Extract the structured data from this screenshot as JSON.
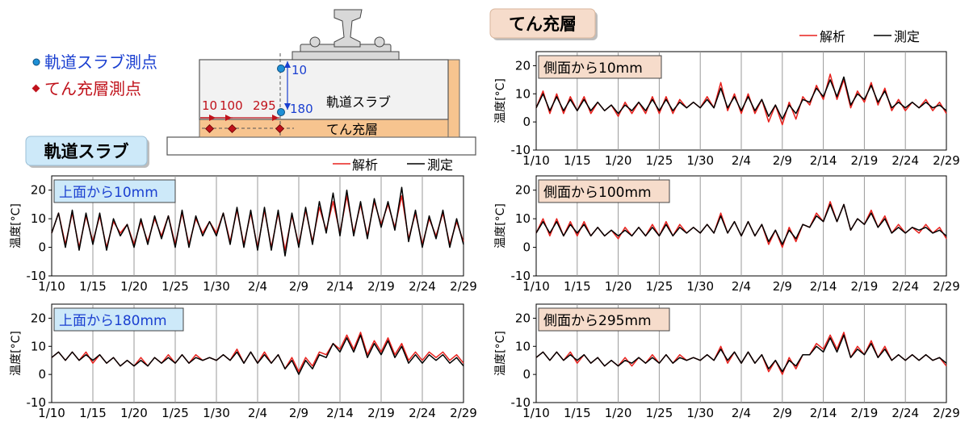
{
  "section_labels": {
    "slab": "軌道スラブ",
    "filler": "てん充層"
  },
  "diagram": {
    "legend_slab_point": "軌道スラブ測点",
    "legend_filler_point": "てん充層測点",
    "slab_label": "軌道スラブ",
    "filler_label": "てん充層",
    "dim_10_top": "10",
    "dim_180": "180",
    "dim_10": "10",
    "dim_100": "100",
    "dim_295": "295"
  },
  "legends": {
    "analysis": "解析",
    "measured": "測定"
  },
  "colors": {
    "analysis": "#e8211d",
    "measured": "#000000",
    "slab_box_fill": "#cde9f9",
    "filler_box_fill": "#f6dccb",
    "slab_point": "#1e8fd5",
    "filler_point": "#c0121b",
    "legend_slab_text": "#1a3fd0",
    "legend_filler_text": "#c0121b"
  },
  "chart_data": [
    {
      "id": "slab10",
      "panel_label": "上面から10mm",
      "group": "slab",
      "type": "line",
      "ylabel": "温度[°C]",
      "ylim": [
        -10,
        25
      ],
      "yticks": [
        -10,
        0,
        10,
        20
      ],
      "xticks": [
        "1/10",
        "1/15",
        "1/20",
        "1/25",
        "1/30",
        "2/4",
        "2/9",
        "2/14",
        "2/19",
        "2/24",
        "2/29"
      ],
      "series": [
        {
          "name": "解析",
          "values": [
            5,
            12,
            1,
            12,
            0,
            11,
            2,
            11,
            0,
            9,
            5,
            8,
            1,
            9,
            2,
            10,
            4,
            11,
            1,
            12,
            1,
            10,
            5,
            9,
            5,
            12,
            2,
            13,
            1,
            12,
            0,
            13,
            0,
            12,
            -1,
            11,
            1,
            13,
            2,
            14,
            6,
            16,
            5,
            18,
            5,
            15,
            4,
            16,
            8,
            15,
            7,
            18,
            3,
            12,
            1,
            10,
            4,
            12,
            1,
            9,
            2
          ]
        },
        {
          "name": "測定",
          "values": [
            5,
            12,
            0,
            13,
            -1,
            12,
            1,
            12,
            -1,
            10,
            4,
            8,
            0,
            10,
            1,
            11,
            3,
            11,
            0,
            13,
            0,
            11,
            4,
            9,
            4,
            12,
            1,
            14,
            0,
            13,
            -1,
            14,
            -1,
            13,
            -3,
            12,
            0,
            14,
            1,
            16,
            5,
            19,
            4,
            20,
            4,
            16,
            3,
            17,
            7,
            16,
            6,
            21,
            2,
            13,
            0,
            11,
            3,
            13,
            0,
            10,
            1
          ]
        }
      ]
    },
    {
      "id": "slab180",
      "panel_label": "上面から180mm",
      "group": "slab",
      "type": "line",
      "ylabel": "温度[°C]",
      "ylim": [
        -10,
        25
      ],
      "yticks": [
        -10,
        0,
        10,
        20
      ],
      "xticks": [
        "1/10",
        "1/15",
        "1/20",
        "1/25",
        "1/30",
        "2/4",
        "2/9",
        "2/14",
        "2/19",
        "2/24",
        "2/29"
      ],
      "series": [
        {
          "name": "解析",
          "values": [
            6,
            8,
            5,
            8,
            5,
            8,
            4,
            7,
            4,
            6,
            3,
            5,
            3,
            6,
            3,
            6,
            4,
            7,
            4,
            7,
            4,
            7,
            5,
            6,
            5,
            7,
            5,
            9,
            4,
            8,
            4,
            8,
            4,
            7,
            2,
            6,
            1,
            6,
            3,
            8,
            7,
            11,
            9,
            14,
            9,
            15,
            7,
            12,
            8,
            13,
            7,
            11,
            5,
            8,
            5,
            8,
            6,
            8,
            5,
            7,
            4
          ]
        },
        {
          "name": "測定",
          "values": [
            6,
            8,
            5,
            8,
            5,
            7,
            5,
            7,
            4,
            6,
            3,
            5,
            3,
            5,
            3,
            6,
            4,
            6,
            4,
            7,
            4,
            6,
            5,
            6,
            5,
            7,
            5,
            8,
            4,
            8,
            4,
            7,
            4,
            7,
            2,
            5,
            0,
            5,
            2,
            7,
            6,
            11,
            8,
            13,
            8,
            14,
            6,
            11,
            7,
            12,
            6,
            10,
            4,
            7,
            4,
            7,
            5,
            7,
            4,
            6,
            3
          ]
        }
      ]
    },
    {
      "id": "fill10",
      "panel_label": "側面から10mm",
      "group": "filler",
      "type": "line",
      "ylabel": "温度[°C]",
      "ylim": [
        -10,
        25
      ],
      "yticks": [
        -10,
        0,
        10,
        20
      ],
      "xticks": [
        "1/10",
        "1/15",
        "1/20",
        "1/25",
        "1/30",
        "2/4",
        "2/9",
        "2/14",
        "2/19",
        "2/24",
        "2/29"
      ],
      "series": [
        {
          "name": "解析",
          "values": [
            5,
            11,
            3,
            10,
            3,
            9,
            4,
            9,
            3,
            7,
            4,
            6,
            2,
            7,
            3,
            7,
            3,
            9,
            3,
            9,
            3,
            8,
            5,
            7,
            5,
            9,
            5,
            14,
            4,
            10,
            3,
            10,
            3,
            8,
            0,
            6,
            -1,
            7,
            1,
            9,
            6,
            13,
            8,
            17,
            8,
            15,
            5,
            11,
            7,
            14,
            6,
            12,
            4,
            8,
            4,
            7,
            5,
            8,
            4,
            7,
            3
          ]
        },
        {
          "name": "測定",
          "values": [
            5,
            10,
            4,
            9,
            4,
            8,
            4,
            8,
            4,
            7,
            4,
            6,
            3,
            6,
            4,
            7,
            4,
            8,
            4,
            8,
            4,
            7,
            5,
            7,
            5,
            8,
            5,
            12,
            5,
            9,
            4,
            9,
            4,
            8,
            2,
            6,
            1,
            6,
            3,
            8,
            7,
            12,
            9,
            15,
            9,
            16,
            6,
            10,
            8,
            13,
            7,
            11,
            5,
            7,
            5,
            7,
            5,
            7,
            5,
            6,
            4
          ]
        }
      ]
    },
    {
      "id": "fill100",
      "panel_label": "側面から100mm",
      "group": "filler",
      "type": "line",
      "ylabel": "温度[°C]",
      "ylim": [
        -10,
        25
      ],
      "yticks": [
        -10,
        0,
        10,
        20
      ],
      "xticks": [
        "1/10",
        "1/15",
        "1/20",
        "1/25",
        "1/30",
        "2/4",
        "2/9",
        "2/14",
        "2/19",
        "2/24",
        "2/29"
      ],
      "series": [
        {
          "name": "解析",
          "values": [
            5,
            10,
            4,
            10,
            4,
            9,
            4,
            9,
            4,
            7,
            4,
            6,
            3,
            7,
            4,
            7,
            4,
            8,
            4,
            9,
            4,
            8,
            5,
            7,
            5,
            8,
            5,
            12,
            5,
            9,
            4,
            9,
            4,
            8,
            1,
            6,
            0,
            7,
            2,
            8,
            7,
            12,
            9,
            16,
            9,
            15,
            6,
            10,
            8,
            13,
            7,
            11,
            5,
            8,
            5,
            7,
            5,
            8,
            5,
            7,
            3
          ]
        },
        {
          "name": "測定",
          "values": [
            5,
            9,
            5,
            9,
            4,
            8,
            5,
            8,
            4,
            7,
            4,
            6,
            4,
            6,
            4,
            7,
            4,
            7,
            4,
            8,
            4,
            7,
            5,
            7,
            5,
            8,
            5,
            11,
            5,
            9,
            4,
            9,
            4,
            8,
            2,
            6,
            1,
            6,
            3,
            8,
            7,
            11,
            9,
            15,
            9,
            15,
            6,
            10,
            8,
            12,
            7,
            10,
            5,
            7,
            5,
            7,
            6,
            7,
            5,
            6,
            4
          ]
        }
      ]
    },
    {
      "id": "fill295",
      "panel_label": "側面から295mm",
      "group": "filler",
      "type": "line",
      "ylabel": "温度[°C]",
      "ylim": [
        -10,
        25
      ],
      "yticks": [
        -10,
        0,
        10,
        20
      ],
      "xticks": [
        "1/10",
        "1/15",
        "1/20",
        "1/25",
        "1/30",
        "2/4",
        "2/9",
        "2/14",
        "2/19",
        "2/24",
        "2/29"
      ],
      "series": [
        {
          "name": "解析",
          "values": [
            6,
            8,
            5,
            8,
            5,
            8,
            4,
            7,
            4,
            6,
            3,
            5,
            3,
            6,
            3,
            6,
            4,
            7,
            4,
            7,
            4,
            7,
            5,
            6,
            5,
            7,
            5,
            10,
            4,
            8,
            4,
            8,
            4,
            7,
            1,
            5,
            0,
            6,
            2,
            7,
            7,
            11,
            9,
            14,
            9,
            15,
            6,
            10,
            7,
            12,
            6,
            10,
            5,
            7,
            5,
            7,
            5,
            7,
            5,
            6,
            3
          ]
        },
        {
          "name": "測定",
          "values": [
            6,
            8,
            5,
            8,
            5,
            7,
            5,
            7,
            4,
            6,
            3,
            5,
            3,
            5,
            4,
            6,
            4,
            6,
            4,
            7,
            4,
            6,
            5,
            6,
            5,
            7,
            5,
            9,
            5,
            8,
            4,
            8,
            4,
            7,
            2,
            5,
            1,
            5,
            3,
            7,
            7,
            10,
            8,
            13,
            8,
            14,
            6,
            9,
            7,
            11,
            6,
            9,
            5,
            7,
            5,
            7,
            5,
            7,
            5,
            6,
            4
          ]
        }
      ]
    }
  ]
}
